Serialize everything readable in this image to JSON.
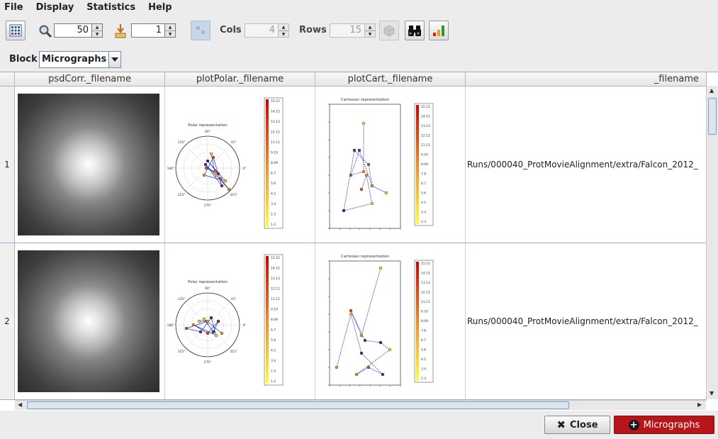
{
  "menu": [
    "File",
    "Display",
    "Statistics",
    "Help"
  ],
  "toolbar": {
    "grid_icon": "grid-icon",
    "zoom_icon": "magnifier-icon",
    "zoom_value": "50",
    "goto_icon": "goto-row-icon",
    "goto_value": "1",
    "cols_label": "Cols",
    "cols_value": "4",
    "rows_label": "Rows",
    "rows_value": "15",
    "find_icon": "binoculars-icon",
    "stats_icon": "bar-chart-icon"
  },
  "block": {
    "label": "Block",
    "value": "Micrographs"
  },
  "table": {
    "columns": [
      "psdCorr._filename",
      "plotPolar._filename",
      "plotCart._filename",
      "_filename"
    ],
    "rows": [
      {
        "index": "1",
        "filename": "Runs/000040_ProtMovieAlignment/extra/Falcon_2012_"
      },
      {
        "index": "2",
        "filename": "Runs/000040_ProtMovieAlignment/extra/Falcon_2012_"
      }
    ]
  },
  "polar_plot": {
    "title": "Polar representation",
    "angle_labels": [
      "90°",
      "45°",
      "0°",
      "315°",
      "270°",
      "225°",
      "180°",
      "135°"
    ],
    "colorbar_labels": [
      "15.15",
      "14.15",
      "13.13",
      "12.12",
      "11.11",
      "9.10",
      "8.09",
      "6.7",
      "5.6",
      "4.5",
      "3.4",
      "2.3",
      "1.2"
    ]
  },
  "cart_plot": {
    "title": "Cartesian representation",
    "colorbar_labels": [
      "15.15",
      "14.15",
      "13.13",
      "12.12",
      "11.11",
      "9.10",
      "8.09",
      "7.8",
      "6.7",
      "5.6",
      "4.5",
      "3.4",
      "2.3"
    ]
  },
  "buttons": {
    "close": "Close",
    "micrographs": "Micrographs"
  },
  "colors": {
    "accent_red": "#b8151b",
    "selection_blue": "#c8d6e8"
  }
}
